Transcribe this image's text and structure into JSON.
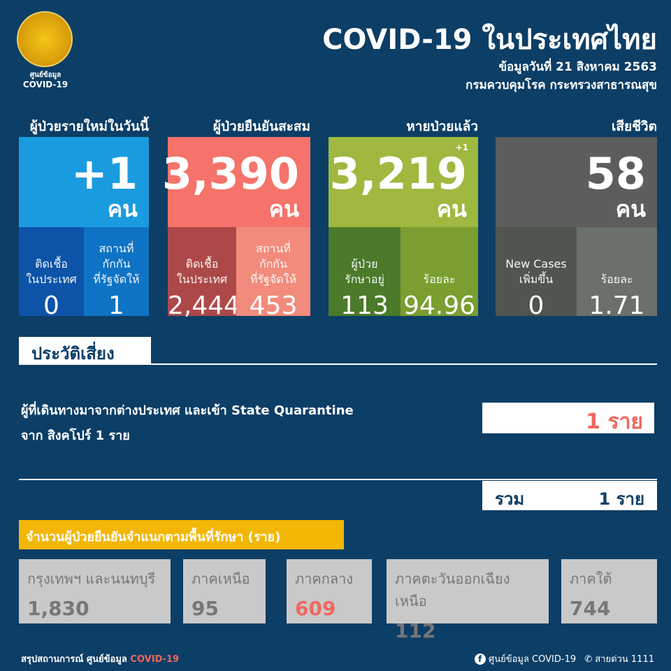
{
  "header": {
    "logo_text1": "ศูนย์ข้อมูล",
    "logo_text2": "COVID-19",
    "title": "COVID-19 ในประเทศไทย",
    "date": "ข้อมูลวันที่ 21 สิงหาคม 2563",
    "source": "กรมควบคุมโรค กระทรวงสาธารณสุข"
  },
  "cards": [
    {
      "label": "ผู้ป่วยรายใหม่ในวันนี้",
      "value": "+1",
      "unit": "คน",
      "color": "#1a9be0",
      "sub": [
        {
          "label": "ติดเชื้อ\nในประเทศ",
          "value": "0",
          "color": "#0d54a8"
        },
        {
          "label": "สถานที่\nกักกัน\nที่รัฐจัดให้",
          "value": "1",
          "color": "#0e73c4"
        }
      ]
    },
    {
      "label": "ผู้ป่วยยืนยันสะสม",
      "value": "3,390",
      "unit": "คน",
      "color": "#f5736a",
      "sub": [
        {
          "label": "ติดเชื้อ\nในประเทศ",
          "value": "2,444",
          "color": "#ad4849"
        },
        {
          "label": "สถานที่\nกักกัน\nที่รัฐจัดให้",
          "value": "453",
          "color": "#f28b7b"
        }
      ]
    },
    {
      "label": "หายป่วยแล้ว",
      "value": "3,219",
      "unit": "คน",
      "delta": "+1",
      "color": "#9fb83f",
      "sub": [
        {
          "label": "ผู้ป่วย\nรักษาอยู่",
          "value": "113",
          "color": "#4b7a2a"
        },
        {
          "label": "ร้อยละ",
          "value": "94.96",
          "color": "#7a9e30"
        }
      ]
    },
    {
      "label": "เสียชีวิต",
      "value": "58",
      "unit": "คน",
      "color": "#5d5d5d",
      "sub": [
        {
          "label": "New Cases\nเพิ่มขึ้น",
          "value": "0",
          "color": "#50554f"
        },
        {
          "label": "ร้อยละ",
          "value": "1.71",
          "color": "#6a706a"
        }
      ]
    }
  ],
  "risk": {
    "heading": "ประวัติเสี่ยง",
    "line1": "ผู้ที่เดินทางมาจากต่างประเทศ และเข้า State Quarantine",
    "line2": "จาก สิงคโปร์ 1 ราย",
    "count": "1 ราย",
    "count_color": "#f0675f",
    "total_label": "รวม",
    "total_value": "1 ราย"
  },
  "regions": {
    "heading": "จำนวนผู้ป่วยยืนยันจำแนกตามพื้นที่รักษา (ราย)",
    "items": [
      {
        "name": "กรุงเทพฯ และนนทบุรี",
        "value": "1,830"
      },
      {
        "name": "ภาคเหนือ",
        "value": "95"
      },
      {
        "name": "ภาคกลาง",
        "value": "609",
        "highlight": "#f0675f"
      },
      {
        "name": "ภาคตะวันออกเฉียงเหนือ",
        "value": "112"
      },
      {
        "name": "ภาคใต้",
        "value": "744"
      }
    ]
  },
  "footer": {
    "left": "สรุปสถานการณ์ ศูนย์ข้อมูล",
    "left_accent": "COVID-19",
    "facebook": "ศูนย์ข้อมูล COVID-19",
    "hotline": "สายด่วน 1111",
    "icons": [
      "facebook-icon",
      "phone-icon"
    ]
  }
}
